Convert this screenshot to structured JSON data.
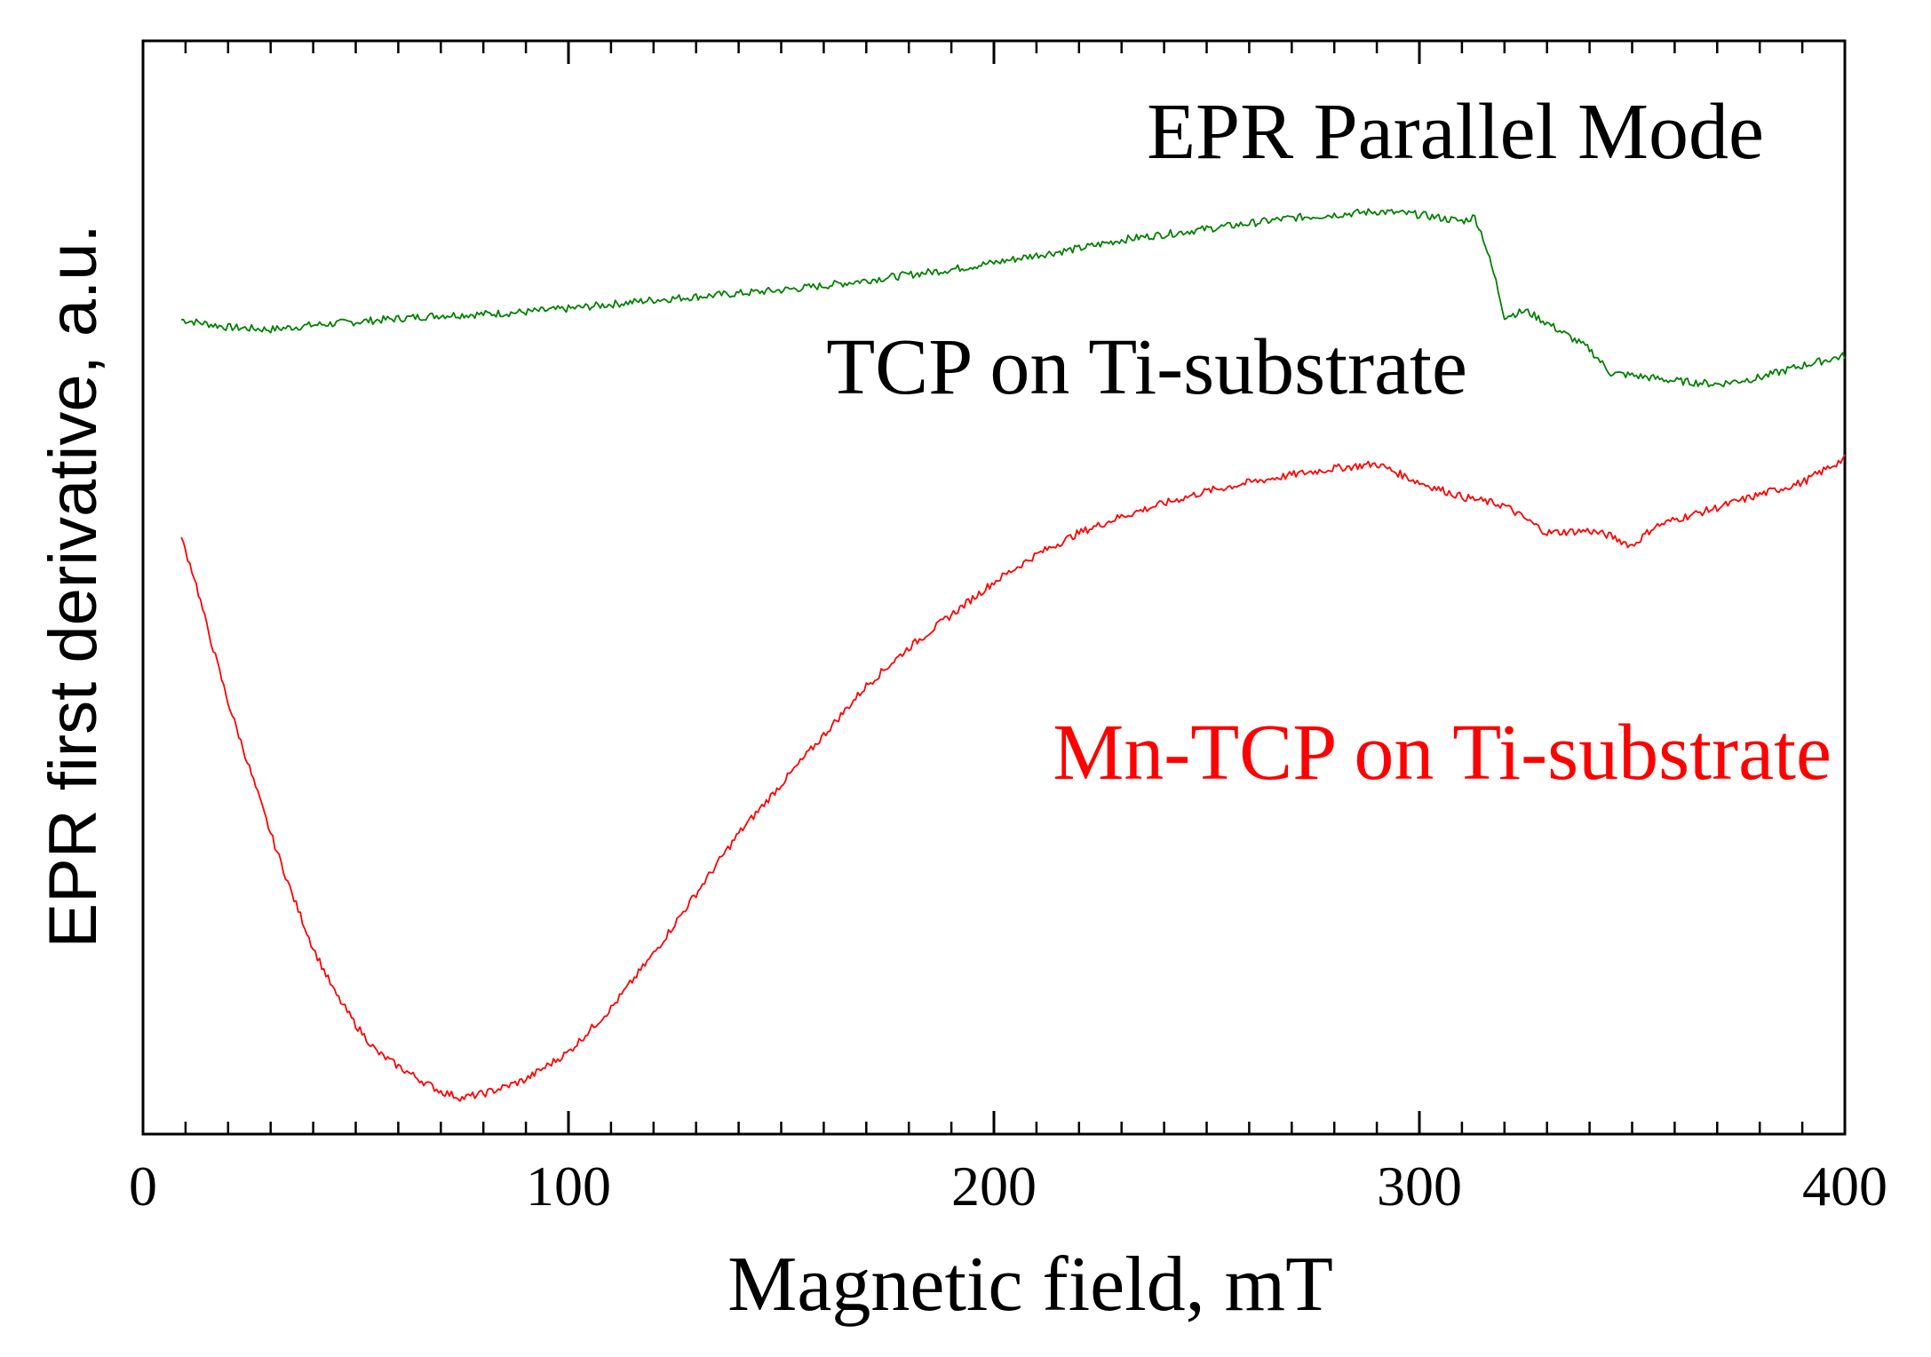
{
  "chart_data": {
    "type": "line",
    "title": "",
    "xlabel": "Magnetic field, mT",
    "ylabel": "EPR first derivative, a.u.",
    "xlim": [
      0,
      400
    ],
    "ylim": [
      0,
      100
    ],
    "xticks": [
      0,
      100,
      200,
      300,
      400
    ],
    "minor_x_step": 10,
    "grid": false,
    "annotations": [
      {
        "text": "EPR Parallel Mode",
        "color": "#000000"
      },
      {
        "text": "TCP on Ti-substrate",
        "color": "#000000"
      },
      {
        "text": "Mn-TCP on Ti-substrate",
        "color": "#ff0000"
      }
    ],
    "series": [
      {
        "name": "TCP on Ti-substrate",
        "color": "#008000",
        "x": [
          9,
          20,
          30,
          40,
          50,
          60,
          70,
          80,
          90,
          100,
          110,
          120,
          130,
          140,
          150,
          160,
          170,
          180,
          190,
          200,
          210,
          220,
          230,
          240,
          250,
          260,
          270,
          280,
          290,
          300,
          305,
          310,
          313,
          315,
          318,
          320,
          325,
          330,
          340,
          345,
          350,
          360,
          370,
          380,
          390,
          400
        ],
        "y": [
          74.5,
          73.8,
          73.6,
          74.0,
          74.3,
          74.6,
          74.9,
          75.0,
          75.2,
          75.5,
          75.9,
          76.3,
          76.6,
          76.9,
          77.2,
          77.6,
          78.1,
          78.6,
          79.1,
          79.7,
          80.4,
          81.0,
          81.8,
          82.3,
          82.8,
          83.3,
          83.8,
          84.1,
          84.4,
          84.1,
          83.8,
          83.5,
          83.9,
          82.0,
          78.0,
          74.8,
          75.3,
          74.2,
          71.8,
          69.6,
          69.4,
          68.9,
          68.6,
          69.2,
          70.3,
          71.2
        ]
      },
      {
        "name": "Mn-TCP on Ti-substrate",
        "color": "#ff0000",
        "x": [
          9,
          12,
          15,
          20,
          25,
          30,
          35,
          40,
          45,
          50,
          55,
          60,
          65,
          70,
          75,
          80,
          85,
          90,
          100,
          110,
          120,
          130,
          140,
          150,
          160,
          170,
          180,
          190,
          200,
          210,
          220,
          230,
          240,
          250,
          260,
          270,
          280,
          290,
          300,
          310,
          320,
          330,
          340,
          345,
          350,
          355,
          360,
          370,
          380,
          390,
          400
        ],
        "y": [
          54.5,
          51.0,
          46.5,
          39.5,
          33.5,
          27.5,
          22.0,
          17.0,
          13.0,
          10.0,
          7.5,
          6.2,
          5.0,
          3.9,
          3.3,
          3.7,
          4.3,
          5.0,
          7.5,
          11.5,
          16.5,
          22.0,
          27.5,
          32.0,
          36.5,
          41.0,
          44.5,
          47.5,
          50.5,
          53.0,
          55.0,
          56.5,
          57.7,
          58.8,
          59.6,
          60.3,
          60.9,
          61.3,
          59.6,
          58.3,
          57.5,
          55.0,
          55.2,
          54.7,
          53.8,
          55.5,
          56.2,
          57.3,
          58.5,
          59.6,
          61.8
        ]
      }
    ]
  }
}
